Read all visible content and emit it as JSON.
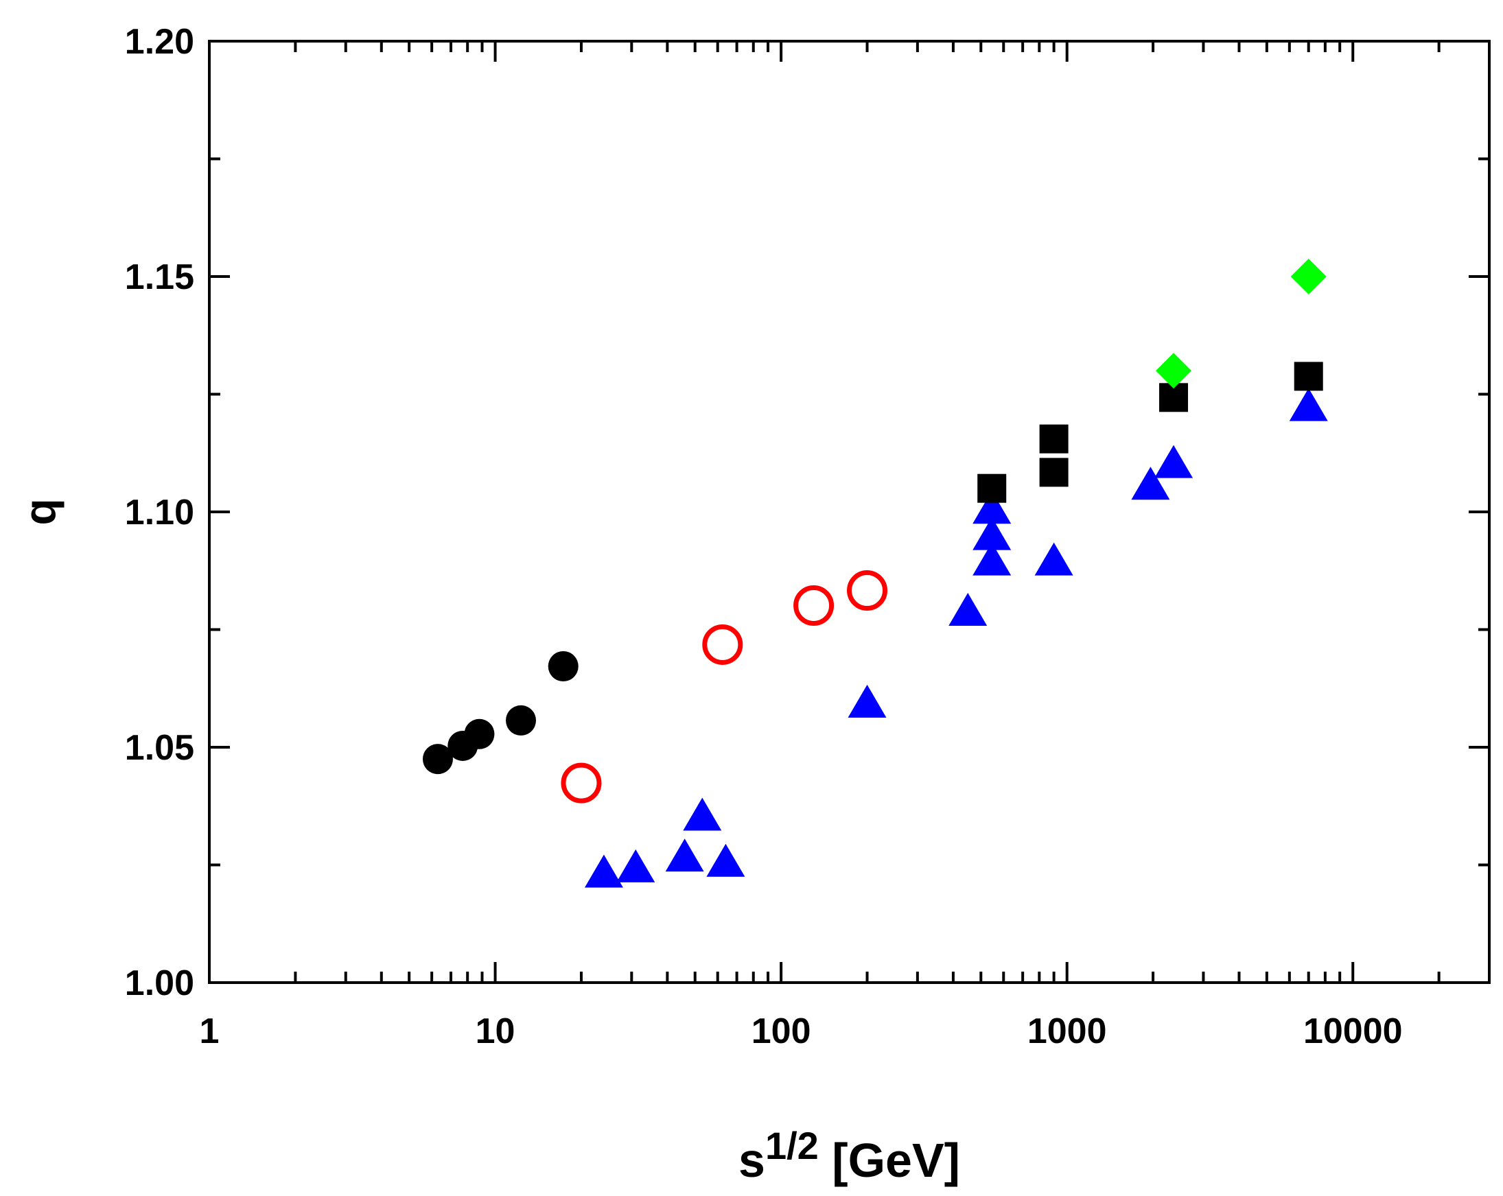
{
  "chart_data": {
    "type": "scatter",
    "xlabel": {
      "base": "s",
      "sup": "1/2",
      "unit": " [GeV]"
    },
    "ylabel": "q",
    "x_scale": "log",
    "xlim": [
      1,
      30000
    ],
    "ylim": [
      1.0,
      1.2
    ],
    "x_ticks": [
      1,
      10,
      100,
      1000,
      10000
    ],
    "x_tick_labels": [
      "1",
      "10",
      "100",
      "1000",
      "10000"
    ],
    "y_ticks": [
      1.0,
      1.05,
      1.1,
      1.15,
      1.2
    ],
    "y_tick_labels": [
      "1.00",
      "1.05",
      "1.10",
      "1.15",
      "1.20"
    ],
    "grid": false,
    "legend": "none",
    "series": [
      {
        "marker": "circle-filled",
        "color": "#000000",
        "points": [
          [
            6.3,
            1.0475
          ],
          [
            7.7,
            1.0503
          ],
          [
            8.8,
            1.0528
          ],
          [
            12.3,
            1.0557
          ],
          [
            17.3,
            1.0672
          ]
        ]
      },
      {
        "marker": "circle-open",
        "color": "#ff0000",
        "points": [
          [
            20,
            1.0424
          ],
          [
            62.4,
            1.0718
          ],
          [
            130,
            1.0801
          ],
          [
            200,
            1.0833
          ]
        ]
      },
      {
        "marker": "triangle",
        "color": "#0000ff",
        "points": [
          [
            24,
            1.0234
          ],
          [
            31,
            1.0245
          ],
          [
            46,
            1.0268
          ],
          [
            53,
            1.0355
          ],
          [
            64,
            1.0257
          ],
          [
            200,
            1.0595
          ],
          [
            450,
            1.079
          ],
          [
            546,
            1.0897
          ],
          [
            546,
            1.0951
          ],
          [
            546,
            1.1007
          ],
          [
            900,
            1.0897
          ],
          [
            1960,
            1.1058
          ],
          [
            2360,
            1.1104
          ],
          [
            7000,
            1.1225
          ]
        ]
      },
      {
        "marker": "square",
        "color": "#000000",
        "points": [
          [
            546,
            1.105
          ],
          [
            900,
            1.1084
          ],
          [
            900,
            1.1155
          ],
          [
            2360,
            1.1243
          ],
          [
            7000,
            1.1288
          ]
        ]
      },
      {
        "marker": "diamond",
        "color": "#00ff00",
        "points": [
          [
            2360,
            1.13
          ],
          [
            7000,
            1.15
          ]
        ]
      }
    ]
  }
}
